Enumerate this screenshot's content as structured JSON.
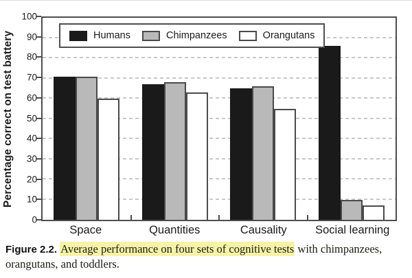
{
  "chart_data": {
    "type": "bar",
    "title": "",
    "xlabel": "",
    "ylabel": "Percentage correct on test battery",
    "categories": [
      "Space",
      "Quantities",
      "Causality",
      "Social learning"
    ],
    "series": [
      {
        "name": "Humans",
        "color": "#1a1a1a",
        "border": "#1a1a1a",
        "values": [
          71,
          67,
          65,
          86
        ]
      },
      {
        "name": "Chimpanzees",
        "color": "#b9b9b9",
        "border": "#4a4a4a",
        "values": [
          71,
          68,
          66,
          10
        ]
      },
      {
        "name": "Orangutans",
        "color": "#ffffff",
        "border": "#4a4a4a",
        "values": [
          60,
          63,
          55,
          7
        ]
      }
    ],
    "ylim": [
      0,
      100
    ],
    "yticks": [
      0,
      10,
      20,
      30,
      40,
      50,
      60,
      70,
      80,
      90,
      100
    ],
    "grid": "horizontal dashed",
    "legend_position": "top inside"
  },
  "caption": {
    "label": "Figure 2.2.",
    "highlight": "Average performance on four sets of cognitive tests",
    "tail": " with chimpanzees,",
    "line2": "orangutans, and toddlers."
  },
  "colors": {
    "frame": "#4d4d4d",
    "gridline": "#c9c9c9",
    "bar_border": "#4a4a4a",
    "highlight_bg": "#f6f2a7",
    "text": "#1a1a1a"
  }
}
